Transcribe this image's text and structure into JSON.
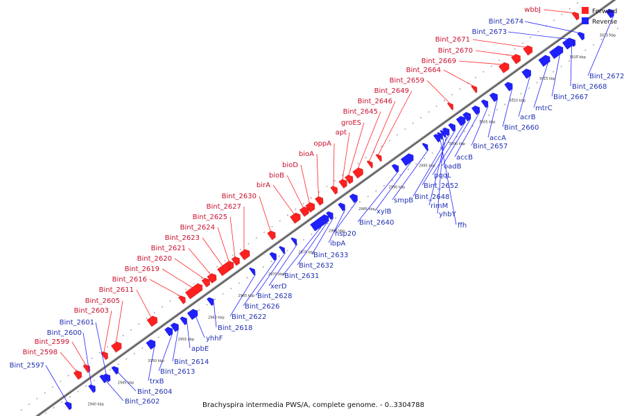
{
  "caption": "Brachyspira intermedia PWS/A, complete genome. - 0..3304788",
  "legend": [
    {
      "label": "Forward",
      "color": "#ff2020"
    },
    {
      "label": "Reverse",
      "color": "#2020ff"
    }
  ],
  "colors": {
    "forward": "#ff2020",
    "reverse": "#2020ff",
    "forward_label": "#c8102e",
    "reverse_label": "#1f2fb0",
    "backbone": "#777777"
  },
  "kbp_ticks": [
    "2940 kbp",
    "2945 kbp",
    "2950 kbp",
    "2955 kbp",
    "2960 kbp",
    "2965 kbp",
    "2970 kbp",
    "2975 kbp",
    "2980 kbp",
    "2985 kbp",
    "2990 kbp",
    "2995 kbp",
    "3000 kbp",
    "3005 kbp",
    "3010 kbp",
    "3015 kbp",
    "3020 kbp",
    "3025 kbp"
  ],
  "forward_genes": [
    "wbbJ",
    "Bint_2671",
    "Bint_2670",
    "Bint_2669",
    "Bint_2664",
    "Bint_2659",
    "Bint_2649",
    "Bint_2646",
    "Bint_2645",
    "groES",
    "apt",
    "oppA",
    "bioA",
    "bioD",
    "bioB",
    "birA",
    "Bint_2630",
    "Bint_2627",
    "Bint_2625",
    "Bint_2624",
    "Bint_2623",
    "Bint_2621",
    "Bint_2620",
    "Bint_2619",
    "Bint_2616",
    "Bint_2611",
    "Bint_2605",
    "Bint_2603",
    "Bint_2599",
    "Bint_2598"
  ],
  "reverse_left_genes": [
    "Bint_2674",
    "Bint_2673",
    "Bint_2601",
    "Bint_2600",
    "Bint_2597"
  ],
  "reverse_right_genes": [
    "Bint_2672",
    "Bint_2668",
    "Bint_2667",
    "mtrC",
    "acrB",
    "Bint_2660",
    "accA",
    "Bint_2657",
    "accB",
    "oadB",
    "pqqL",
    "Bint_2652",
    "Bint_2648",
    "rimM",
    "yhbY",
    "ffh",
    "smpB",
    "xylB",
    "Bint_2640",
    "hsp20",
    "ibpA",
    "Bint_2633",
    "Bint_2632",
    "Bint_2631",
    "xerD",
    "Bint_2628",
    "Bint_2626",
    "Bint_2622",
    "Bint_2618",
    "yhhF",
    "apbE",
    "Bint_2614",
    "Bint_2613",
    "trxB",
    "Bint_2604",
    "Bint_2602"
  ]
}
